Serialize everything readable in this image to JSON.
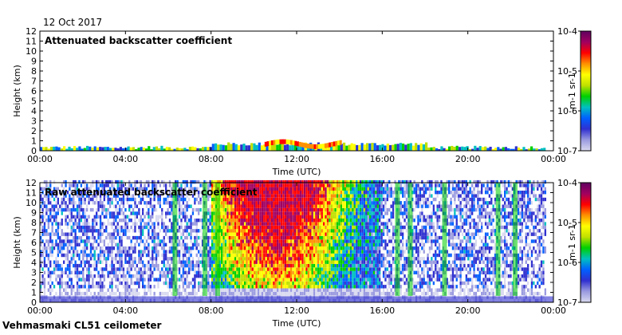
{
  "date_label": "12 Oct 2017",
  "footer_label": "Vehmasmaki CL51 ceilometer",
  "colors": {
    "scale": [
      "#d9d9f0",
      "#9a9ae0",
      "#3030d0",
      "#0060ff",
      "#00c0c0",
      "#00d000",
      "#c0e000",
      "#ffff00",
      "#ff9000",
      "#ff0000",
      "#a00060",
      "#600060"
    ],
    "background": "#ffffff",
    "axis": "#000000"
  },
  "chart_data": [
    {
      "type": "heatmap",
      "title": "Attenuated backscatter coefficient",
      "xlabel": "Time (UTC)",
      "ylabel": "Height (km)",
      "xticks": [
        "00:00",
        "04:00",
        "08:00",
        "12:00",
        "16:00",
        "20:00",
        "00:00"
      ],
      "xlim": [
        0,
        24
      ],
      "ylim": [
        0,
        12
      ],
      "yticks": [
        "0",
        "1",
        "2",
        "3",
        "4",
        "5",
        "6",
        "7",
        "8",
        "9",
        "10",
        "11",
        "12"
      ],
      "colorbar": {
        "scale": "log",
        "range": [
          1e-07,
          0.0001
        ],
        "tick_labels": [
          "10-4",
          "10-5",
          "10-6",
          "10-7"
        ],
        "unit_label": "m-1 sr-1"
      },
      "features": [
        {
          "desc": "near-surface aerosol layer",
          "time_range": [
            0,
            24
          ],
          "height_km": [
            0,
            0.5
          ]
        },
        {
          "desc": "low cloud layer",
          "time_range": [
            10.5,
            14
          ],
          "height_km": [
            0.5,
            1.1
          ]
        }
      ]
    },
    {
      "type": "heatmap",
      "title": "Raw attenuated backscatter coefficient",
      "xlabel": "Time (UTC)",
      "ylabel": "Height (km)",
      "xticks": [
        "00:00",
        "04:00",
        "08:00",
        "12:00",
        "16:00",
        "20:00",
        "00:00"
      ],
      "xlim": [
        0,
        24
      ],
      "ylim": [
        0,
        12
      ],
      "yticks": [
        "0",
        "1",
        "2",
        "3",
        "4",
        "5",
        "6",
        "7",
        "8",
        "9",
        "10",
        "11",
        "12"
      ],
      "colorbar": {
        "scale": "log",
        "range": [
          1e-07,
          0.0001
        ],
        "tick_labels": [
          "10-4",
          "10-5",
          "10-6",
          "10-7"
        ],
        "unit_label": "m-1 sr-1"
      },
      "features": [
        {
          "desc": "daytime high-noise region",
          "time_range": [
            8,
            16
          ],
          "height_km": [
            1,
            12
          ]
        },
        {
          "desc": "vertical streaks",
          "times": [
            6.2,
            7.6,
            8.2,
            16.6,
            17.2,
            18.8,
            21.3,
            22.1
          ]
        }
      ]
    }
  ]
}
